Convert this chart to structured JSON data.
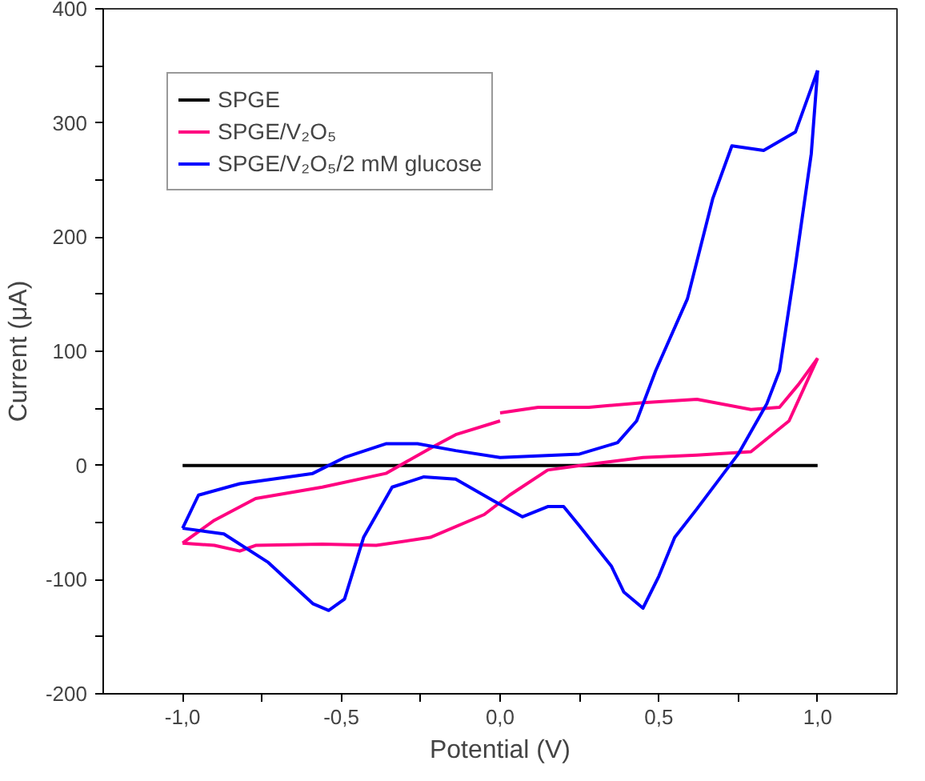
{
  "chart_data": {
    "type": "line",
    "xlabel": "Potential (V)",
    "ylabel": "Current (μA)",
    "xlim": [
      -1.25,
      1.25
    ],
    "ylim": [
      -200,
      400
    ],
    "xticks": [
      {
        "value": -1,
        "label": "-1,0"
      },
      {
        "value": -0.75,
        "label": null
      },
      {
        "value": -0.5,
        "label": "-0,5"
      },
      {
        "value": -0.25,
        "label": null
      },
      {
        "value": 0,
        "label": "0,0"
      },
      {
        "value": 0.25,
        "label": null
      },
      {
        "value": 0.5,
        "label": "0,5"
      },
      {
        "value": 0.75,
        "label": null
      },
      {
        "value": 1,
        "label": "1,0"
      }
    ],
    "yticks": [
      -200,
      {
        "value": -150,
        "label": null
      },
      -100,
      {
        "value": -50,
        "label": null
      },
      0,
      {
        "value": 50,
        "label": null
      },
      100,
      {
        "value": 150,
        "label": null
      },
      200,
      {
        "value": 250,
        "label": null
      },
      300,
      {
        "value": 350,
        "label": null
      },
      400
    ],
    "grid": false,
    "legend": "top left",
    "line_style": "solid",
    "marker": "none",
    "series": [
      {
        "name": "SPGE",
        "color": "#000000",
        "x": [
          -1,
          1
        ],
        "values": [
          0,
          0
        ]
      },
      {
        "name": "SPGE/V₂O₅",
        "color": "#ff0080",
        "x": [
          -1,
          -0.9,
          -0.77,
          -0.56,
          -0.36,
          -0.22,
          -0.14,
          0.0
        ],
        "values": [
          -68,
          -48,
          -29,
          -19,
          -7,
          15,
          27,
          39
        ]
      },
      {
        "color": "#ff0080",
        "x": [
          0.0,
          0.12,
          0.28,
          0.45,
          0.62,
          0.79,
          0.88,
          0.94,
          1.0
        ],
        "values": [
          46,
          51,
          51,
          55,
          58,
          49,
          51,
          71,
          94
        ]
      },
      {
        "color": "#ff0080",
        "x": [
          1.0,
          0.91,
          0.79,
          0.62,
          0.45,
          0.28,
          0.15,
          0.03,
          -0.05,
          -0.22,
          -0.39,
          -0.56,
          -0.77,
          -0.82,
          -0.9,
          -1
        ],
        "values": [
          94,
          39,
          12,
          9,
          7,
          1,
          -4,
          -26,
          -43,
          -63,
          -70,
          -69,
          -70,
          -75,
          -70,
          -68
        ]
      },
      {
        "name": "SPGE/V₂O₅/2 mM glucose",
        "color": "#0000ff",
        "x": [
          -1,
          -0.95,
          -0.82,
          -0.59,
          -0.49,
          -0.36,
          -0.26,
          -0.14,
          0.0,
          0.25,
          0.37,
          0.43,
          0.49,
          0.59,
          0.67,
          0.73,
          0.83,
          0.93,
          1.0
        ],
        "values": [
          -55,
          -26,
          -16,
          -7,
          7,
          19,
          19,
          13,
          7,
          10,
          20,
          39,
          83,
          146,
          234,
          280,
          276,
          292,
          346
        ]
      },
      {
        "color": "#0000ff",
        "x": [
          1.0,
          0.98,
          0.93,
          0.88,
          0.84,
          0.75,
          0.62,
          0.55,
          0.5,
          0.45,
          0.39,
          0.35,
          0.25,
          0.2,
          0.15,
          0.07,
          -0.02,
          -0.14,
          -0.24,
          -0.34,
          -0.43,
          -0.49,
          -0.54,
          -0.59,
          -0.73,
          -0.87,
          -1
        ],
        "values": [
          346,
          273,
          175,
          83,
          54,
          10,
          -38,
          -63,
          -97,
          -125,
          -111,
          -88,
          -53,
          -36,
          -36,
          -45,
          -31,
          -12,
          -10,
          -19,
          -63,
          -117,
          -127,
          -121,
          -85,
          -60,
          -55
        ]
      }
    ]
  }
}
